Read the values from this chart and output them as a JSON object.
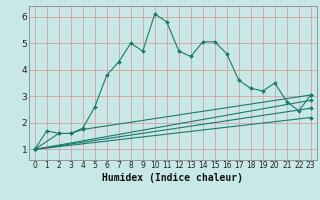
{
  "title": "",
  "xlabel": "Humidex (Indice chaleur)",
  "background_color": "#c8e8e8",
  "grid_color": "#d4a0a0",
  "line_color": "#1a7a6a",
  "spine_color": "#888888",
  "xlim": [
    -0.5,
    23.5
  ],
  "ylim": [
    0.6,
    6.4
  ],
  "xticks": [
    0,
    1,
    2,
    3,
    4,
    5,
    6,
    7,
    8,
    9,
    10,
    11,
    12,
    13,
    14,
    15,
    16,
    17,
    18,
    19,
    20,
    21,
    22,
    23
  ],
  "yticks": [
    1,
    2,
    3,
    4,
    5,
    6
  ],
  "series1_x": [
    0,
    1,
    2,
    3,
    4,
    5,
    6,
    7,
    8,
    9,
    10,
    11,
    12,
    13,
    14,
    15,
    16,
    17,
    18,
    19,
    20,
    21,
    22,
    23
  ],
  "series1_y": [
    1.0,
    1.7,
    1.6,
    1.6,
    1.8,
    2.6,
    3.8,
    4.3,
    5.0,
    4.7,
    6.1,
    5.8,
    4.7,
    4.5,
    5.05,
    5.05,
    4.6,
    3.6,
    3.3,
    3.2,
    3.5,
    2.8,
    2.45,
    3.05
  ],
  "series2_x": [
    0,
    2,
    3,
    4,
    23
  ],
  "series2_y": [
    1.0,
    1.6,
    1.6,
    1.75,
    3.05
  ],
  "series3_x": [
    0,
    23
  ],
  "series3_y": [
    1.0,
    2.85
  ],
  "series4_x": [
    0,
    23
  ],
  "series4_y": [
    1.0,
    2.55
  ],
  "series5_x": [
    0,
    23
  ],
  "series5_y": [
    1.0,
    2.2
  ],
  "xlabel_fontsize": 7,
  "tick_fontsize": 5.5,
  "ytick_fontsize": 6.5
}
